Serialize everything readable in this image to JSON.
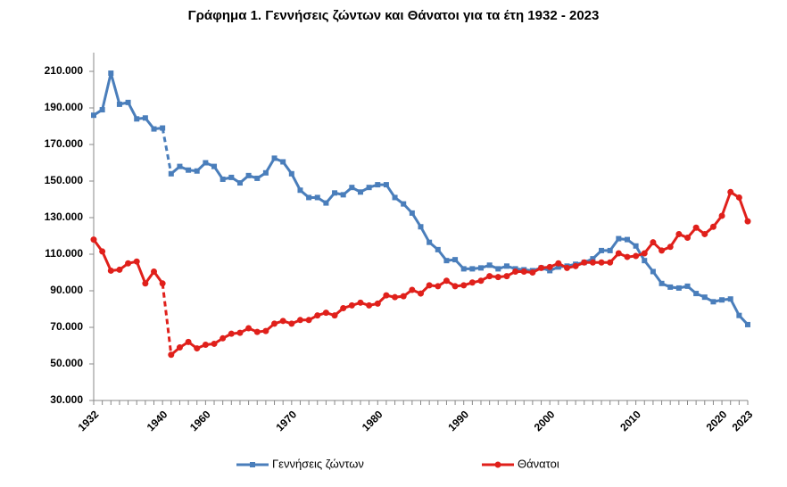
{
  "chart_data": {
    "type": "line",
    "title": "Γράφημα 1.  Γεννήσεις ζώντων και Θάνατοι για τα έτη 1932 - 2023",
    "categories": [
      "1932",
      null,
      null,
      null,
      null,
      null,
      null,
      null,
      "1940",
      null,
      null,
      null,
      null,
      "1960",
      null,
      null,
      null,
      null,
      null,
      null,
      null,
      null,
      null,
      "1970",
      null,
      null,
      null,
      null,
      null,
      null,
      null,
      null,
      null,
      "1980",
      null,
      null,
      null,
      null,
      null,
      null,
      null,
      null,
      null,
      "1990",
      null,
      null,
      null,
      null,
      null,
      null,
      null,
      null,
      null,
      "2000",
      null,
      null,
      null,
      null,
      null,
      null,
      null,
      null,
      null,
      "2010",
      null,
      null,
      null,
      null,
      null,
      null,
      null,
      null,
      null,
      "2020",
      null,
      null,
      "2023"
    ],
    "dashed_segment": [
      8,
      9
    ],
    "series": [
      {
        "name": "Γεννήσεις ζώντων",
        "color": "#4a7ebb",
        "marker": "square",
        "values": [
          186000,
          189000,
          209000,
          192000,
          193000,
          184000,
          184500,
          178500,
          179000,
          154000,
          158000,
          156000,
          155500,
          160000,
          158000,
          151000,
          152000,
          149000,
          153000,
          151500,
          154500,
          162500,
          160500,
          154000,
          145000,
          141000,
          141000,
          138000,
          143500,
          142500,
          146500,
          144000,
          146500,
          148000,
          148000,
          141000,
          137500,
          132500,
          125000,
          116500,
          112500,
          106500,
          107000,
          102000,
          102000,
          102500,
          104000,
          102000,
          103500,
          102000,
          101500,
          101000,
          102500,
          101000,
          103000,
          103500,
          104500,
          105500,
          107500,
          112000,
          112000,
          118500,
          118000,
          114500,
          106500,
          100500,
          94000,
          92000,
          91500,
          92500,
          88500,
          86500,
          84000,
          85000,
          85500,
          76500,
          71500
        ]
      },
      {
        "name": "Θάνατοι",
        "color": "#e0201b",
        "marker": "circle",
        "values": [
          118000,
          111500,
          101000,
          101500,
          105000,
          106000,
          94000,
          100500,
          94000,
          55000,
          59000,
          62000,
          58500,
          60500,
          61000,
          64000,
          66500,
          67000,
          69500,
          67500,
          68000,
          72000,
          73500,
          72000,
          74000,
          74000,
          76500,
          78000,
          76500,
          80500,
          82000,
          83500,
          82000,
          83000,
          87500,
          86500,
          87000,
          90500,
          88500,
          93000,
          92500,
          95500,
          92500,
          93000,
          94500,
          95500,
          98000,
          97500,
          98000,
          100500,
          100500,
          100000,
          102500,
          103000,
          105000,
          102500,
          103500,
          105500,
          105500,
          105500,
          105500,
          110500,
          108500,
          109000,
          110500,
          116500,
          112000,
          114000,
          121000,
          119000,
          124500,
          121000,
          125000,
          131000,
          144000,
          141000,
          128000
        ]
      }
    ],
    "ylim": [
      30000,
      220000
    ],
    "yticks": [
      {
        "value": 30000,
        "label": "30.000"
      },
      {
        "value": 50000,
        "label": "50.000"
      },
      {
        "value": 70000,
        "label": "70.000"
      },
      {
        "value": 90000,
        "label": "90.000"
      },
      {
        "value": 110000,
        "label": "110.000"
      },
      {
        "value": 130000,
        "label": "130.000"
      },
      {
        "value": 150000,
        "label": "150.000"
      },
      {
        "value": 170000,
        "label": "170.000"
      },
      {
        "value": 190000,
        "label": "190.000"
      },
      {
        "value": 210000,
        "label": "210.000"
      }
    ],
    "grid": false,
    "legend": "bottom"
  }
}
